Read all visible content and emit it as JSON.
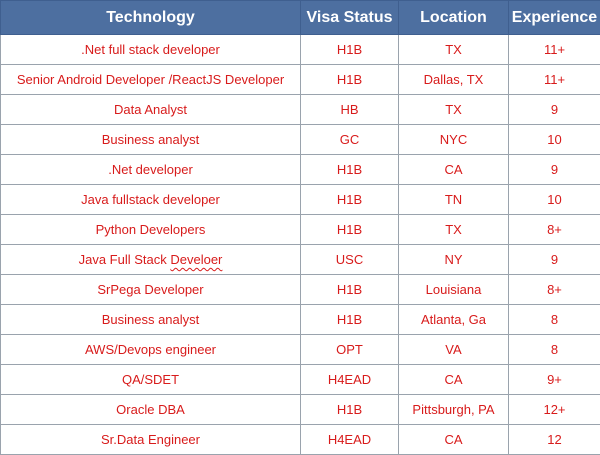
{
  "table": {
    "headers": [
      "Technology",
      "Visa Status",
      "Location",
      "Experience"
    ],
    "rows": [
      {
        "technology": ".Net full stack developer",
        "visa": "H1B",
        "location": "TX",
        "experience": "11+"
      },
      {
        "technology": "Senior Android Developer /ReactJS Developer",
        "visa": "H1B",
        "location": "Dallas, TX",
        "experience": "11+"
      },
      {
        "technology": "Data Analyst",
        "visa": "HB",
        "location": "TX",
        "experience": "9"
      },
      {
        "technology": "Business analyst",
        "visa": "GC",
        "location": "NYC",
        "experience": "10"
      },
      {
        "technology": ".Net developer",
        "visa": "H1B",
        "location": "CA",
        "experience": "9"
      },
      {
        "technology": "Java fullstack developer",
        "visa": "H1B",
        "location": "TN",
        "experience": "10"
      },
      {
        "technology": "Python Developers",
        "visa": "H1B",
        "location": "TX",
        "experience": "8+"
      },
      {
        "technology_prefix": "Java Full Stack ",
        "technology_misspelled": "Develoer",
        "visa": "USC",
        "location": "NY",
        "experience": "9"
      },
      {
        "technology": "SrPega Developer",
        "visa": "H1B",
        "location": "Louisiana",
        "experience": "8+"
      },
      {
        "technology": "Business analyst",
        "visa": "H1B",
        "location": "Atlanta, Ga",
        "experience": "8"
      },
      {
        "technology": "AWS/Devops engineer",
        "visa": "OPT",
        "location": "VA",
        "experience": "8"
      },
      {
        "technology": "QA/SDET",
        "visa": "H4EAD",
        "location": "CA",
        "experience": "9+"
      },
      {
        "technology": "Oracle DBA",
        "visa": "H1B",
        "location": "Pittsburgh, PA",
        "experience": "12+"
      },
      {
        "technology": "Sr.Data Engineer",
        "visa": "H4EAD",
        "location": "CA",
        "experience": "12"
      }
    ]
  },
  "colors": {
    "header_bg": "#4d6fa0",
    "header_text": "#ffffff",
    "cell_text": "#d81b1b",
    "grid_line": "#9aa3ad"
  }
}
